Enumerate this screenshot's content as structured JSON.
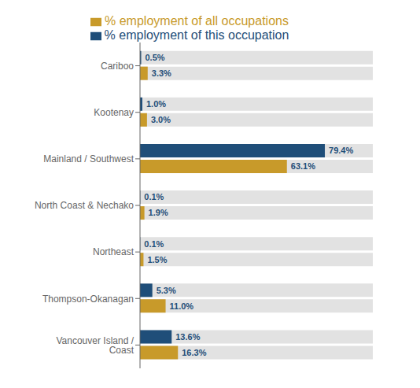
{
  "chart_data": {
    "type": "bar",
    "orientation": "horizontal",
    "categories": [
      "Cariboo",
      "Kootenay",
      "Mainland / Southwest",
      "North Coast & Nechako",
      "Northeast",
      "Thompson-Okanagan",
      "Vancouver Island / Coast"
    ],
    "series": [
      {
        "name": "% employment of this occupation",
        "color": "#1F4E79",
        "values": [
          0.5,
          1.0,
          79.4,
          0.1,
          0.1,
          5.3,
          13.6
        ],
        "value_labels": [
          "0.5%",
          "1.0%",
          "79.4%",
          "0.1%",
          "0.1%",
          "5.3%",
          "13.6%"
        ]
      },
      {
        "name": "% employment of all occupations",
        "color": "#C89A2A",
        "values": [
          3.3,
          3.0,
          63.1,
          1.9,
          1.5,
          11.0,
          16.3
        ],
        "value_labels": [
          "3.3%",
          "3.0%",
          "63.1%",
          "1.9%",
          "1.5%",
          "11.0%",
          "16.3%"
        ]
      }
    ],
    "xlim": [
      0,
      100
    ],
    "data_labels": true,
    "tick_labels": "y",
    "legend": "top"
  }
}
